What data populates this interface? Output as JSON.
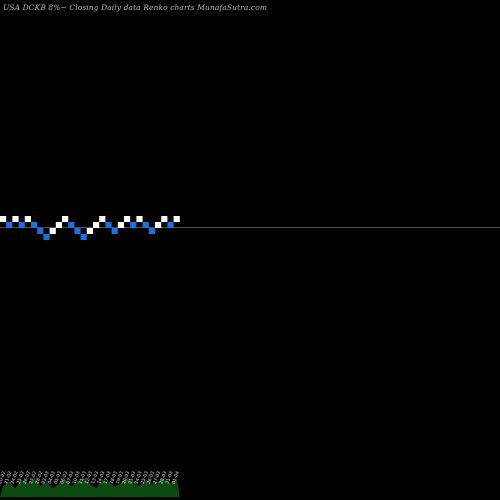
{
  "chart_data": {
    "type": "renko",
    "title": "USA DCKB 8%~  Closing Daily data  Renko  charts MunafaSutra.com",
    "colors": {
      "background": "#000000",
      "up_brick": "#ffffff",
      "down_brick": "#1e6fe0",
      "last_price_line": "#c04a10",
      "volume": "#0d4a12"
    },
    "bricks": [
      {
        "dir": "up",
        "level": 4
      },
      {
        "dir": "down",
        "level": 3
      },
      {
        "dir": "up",
        "level": 4
      },
      {
        "dir": "down",
        "level": 3
      },
      {
        "dir": "up",
        "level": 4
      },
      {
        "dir": "down",
        "level": 3
      },
      {
        "dir": "down",
        "level": 2
      },
      {
        "dir": "down",
        "level": 1
      },
      {
        "dir": "up",
        "level": 2
      },
      {
        "dir": "up",
        "level": 3
      },
      {
        "dir": "up",
        "level": 4
      },
      {
        "dir": "down",
        "level": 3
      },
      {
        "dir": "down",
        "level": 2
      },
      {
        "dir": "down",
        "level": 1
      },
      {
        "dir": "up",
        "level": 2
      },
      {
        "dir": "up",
        "level": 3
      },
      {
        "dir": "up",
        "level": 4
      },
      {
        "dir": "down",
        "level": 3
      },
      {
        "dir": "down",
        "level": 2
      },
      {
        "dir": "up",
        "level": 3
      },
      {
        "dir": "up",
        "level": 4
      },
      {
        "dir": "down",
        "level": 3
      },
      {
        "dir": "up",
        "level": 4
      },
      {
        "dir": "down",
        "level": 3
      },
      {
        "dir": "down",
        "level": 2
      },
      {
        "dir": "up",
        "level": 3
      },
      {
        "dir": "up",
        "level": 4
      },
      {
        "dir": "down",
        "level": 3
      },
      {
        "dir": "up",
        "level": 4
      }
    ],
    "last_price_level": 3,
    "date_labels": [
      "20-02",
      "21-02",
      "24-02",
      "25-02",
      "26-02",
      "27-02",
      "28-02",
      "03-03",
      "04-03",
      "05-03",
      "06-03",
      "07-03",
      "10-03",
      "11-03",
      "12-03",
      "13-03",
      "14-03",
      "17-03",
      "18-03",
      "19-03",
      "20-03",
      "21-03",
      "24-03",
      "25-03",
      "26-03",
      "27-03",
      "28-03",
      "31-03",
      "01-04"
    ],
    "volume": [
      5,
      7,
      4,
      8,
      6,
      9,
      5,
      7,
      4,
      6,
      8,
      5,
      7,
      9,
      6,
      4,
      8,
      7,
      5,
      6,
      9,
      7,
      5,
      8,
      6,
      7,
      9,
      6,
      8
    ]
  }
}
